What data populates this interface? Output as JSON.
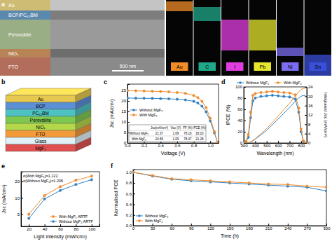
{
  "chart_data": [
    {
      "type": "line",
      "title": "c",
      "x_label": "Voltage (V)",
      "y_label": "Jsc (mA/cm²)",
      "x": [
        0,
        0.1,
        0.2,
        0.3,
        0.4,
        0.5,
        0.6,
        0.7,
        0.8,
        0.85,
        0.9,
        0.95,
        1.0,
        1.05,
        1.09
      ],
      "series": [
        {
          "name": "Without MgF₂",
          "color": "#2e7fc2",
          "marker": "circle",
          "line_style": "solid",
          "values": [
            21.37,
            21.3,
            21.25,
            21.2,
            21.1,
            21.0,
            20.8,
            20.5,
            19.8,
            19.0,
            17.5,
            14.8,
            10.5,
            4.8,
            0
          ]
        },
        {
          "name": "With MgF₂",
          "color": "#ef8a2a",
          "marker": "circle",
          "line_style": "solid",
          "values": [
            24.89,
            24.8,
            24.7,
            24.6,
            24.5,
            24.3,
            24.0,
            23.6,
            22.6,
            21.6,
            19.8,
            16.8,
            11.8,
            5.4,
            0
          ]
        }
      ],
      "xlim": [
        0,
        1.1
      ],
      "xticks": [
        {
          "value": 0,
          "label": "0.0"
        },
        0.2,
        0.4,
        0.6,
        0.8,
        {
          "value": 1,
          "label": "1.0"
        }
      ],
      "ylim": [
        0,
        28
      ],
      "yticks": [
        0,
        5,
        10,
        15,
        20,
        25
      ],
      "legend": "center left",
      "table": {
        "columns": [
          "Jsc(mA/cm²)",
          "Voc (V)",
          "FF (%)",
          "PCE (%)"
        ],
        "rows": [
          [
            "Without MgF₂",
            "21.37",
            "1.09",
            "78.16",
            "18.20"
          ],
          [
            "With MgF₂",
            "24.89",
            "1.09",
            "78.47",
            "21.28"
          ]
        ]
      }
    },
    {
      "type": "line",
      "title": "d",
      "x_label": "Wavelength (nm)",
      "y_label": "IPCE (%)",
      "y2_label": "Integrated Jsc (mA/cm²)",
      "x": [
        300,
        320,
        340,
        360,
        380,
        400,
        450,
        500,
        550,
        600,
        650,
        700,
        750,
        780,
        800,
        820,
        840
      ],
      "series": [
        {
          "name": "Without MgF₂",
          "color": "#2e7fc2",
          "marker": "circle",
          "line_style": "solid",
          "values": [
            0,
            2,
            10,
            45,
            75,
            80,
            83,
            84,
            85,
            84,
            83,
            82,
            78,
            55,
            20,
            3,
            0
          ]
        },
        {
          "name": "With MgF₂",
          "color": "#ef8a2a",
          "marker": "circle",
          "line_style": "solid",
          "values": [
            0,
            3,
            15,
            55,
            85,
            88,
            90,
            91,
            92,
            91,
            90,
            89,
            86,
            62,
            25,
            4,
            0
          ]
        },
        {
          "color": "#2e7fc2",
          "marker": "none",
          "line_style": "solid",
          "axis": "y2",
          "values": [
            0,
            0,
            0.1,
            0.4,
            1.0,
            1.6,
            3.5,
            5.4,
            7.8,
            10.2,
            12.7,
            15.2,
            17.9,
            19.3,
            20.0,
            20.3,
            20.3
          ]
        },
        {
          "color": "#ef8a2a",
          "marker": "none",
          "line_style": "solid",
          "axis": "y2",
          "values": [
            0,
            0,
            0.1,
            0.5,
            1.1,
            1.8,
            4.0,
            6.2,
            8.8,
            11.5,
            14.3,
            17.0,
            20.1,
            21.9,
            22.9,
            23.4,
            23.4
          ]
        }
      ],
      "xlim": [
        300,
        850
      ],
      "xticks": [
        300,
        400,
        500,
        600,
        700,
        800
      ],
      "ylim": [
        0,
        100
      ],
      "yticks": [
        0,
        20,
        40,
        60,
        80,
        100
      ],
      "y2lim": [
        0,
        24
      ],
      "y2ticks": [
        0,
        4,
        8,
        12,
        16,
        20,
        24
      ],
      "legend": "top"
    },
    {
      "type": "line",
      "title": "e",
      "x_label": "Light intensity (mW/cm²)",
      "y_label": "Jsc (mA/cm²)",
      "x": [
        20,
        40,
        60,
        80,
        100
      ],
      "series": [
        {
          "name": "With MgF₂ ARTF",
          "color": "#ef8a2a",
          "marker": "square",
          "line_style": "solid",
          "values": [
            5.0,
            11.0,
            16.0,
            21.0,
            24.9
          ]
        },
        {
          "name": "Without MgF₂ ARTF",
          "color": "#2e7fc2",
          "marker": "circle",
          "line_style": "solid",
          "values": [
            4.2,
            9.5,
            13.6,
            17.5,
            21.4
          ]
        }
      ],
      "xlim": [
        10,
        110
      ],
      "xticks": [
        20,
        40,
        60,
        80,
        100
      ],
      "ylim": [
        3,
        30
      ],
      "yticks": [
        5,
        10,
        20
      ],
      "log": "y",
      "legend": "lower right",
      "annotations": [
        "α(With MgF₂)=1.122",
        "α(Without MgF₂)=1.205"
      ]
    },
    {
      "type": "line",
      "title": "f",
      "x_label": "Time (h)",
      "y_label": "Normalised PCE",
      "x": [
        0,
        30,
        60,
        90,
        120,
        150,
        180,
        210,
        240,
        270,
        300
      ],
      "series": [
        {
          "name": "Without MgF₂",
          "color": "#2e7fc2",
          "marker": "circle",
          "line_style": "solid",
          "values": [
            1.0,
            0.93,
            0.87,
            0.84,
            0.82,
            0.8,
            0.78,
            0.76,
            0.74,
            0.72,
            0.65
          ]
        },
        {
          "name": "With MgF₂",
          "color": "#ef8a2a",
          "marker": "circle",
          "line_style": "solid",
          "values": [
            1.0,
            0.94,
            0.88,
            0.86,
            0.84,
            0.82,
            0.8,
            0.78,
            0.77,
            0.74,
            0.72
          ]
        }
      ],
      "xlim": [
        0,
        300
      ],
      "xticks": [
        0,
        30,
        60,
        90,
        120,
        150,
        180,
        210,
        240,
        270,
        300
      ],
      "ylim": [
        0,
        1.05
      ],
      "yticks": [
        {
          "value": 0,
          "label": "0.0"
        },
        0.2,
        0.4,
        0.6,
        0.8,
        {
          "value": 1,
          "label": "1.0"
        }
      ],
      "legend": "lower left"
    }
  ],
  "sem": {
    "title": "a",
    "scale_bar": "500 nm",
    "layers": [
      {
        "label": "Au",
        "color": "#d4b84a"
      },
      {
        "label": "BCP/PC₆₁BM",
        "color": "#4a90c8"
      },
      {
        "label": "Perovskite",
        "color": "#9ab87a"
      },
      {
        "label": "NiOₓ",
        "color": "#e0904a"
      },
      {
        "label": "FTO",
        "color": "#c86040"
      }
    ]
  },
  "eds": [
    {
      "label": "Au",
      "color": "#f28c28"
    },
    {
      "label": "C",
      "color": "#1fa88a"
    },
    {
      "label": "I",
      "color": "#e23de0"
    },
    {
      "label": "Pb",
      "color": "#e6e62e"
    },
    {
      "label": "Ni",
      "color": "#7b6cf0"
    },
    {
      "label": "Sn",
      "color": "#3a4fd8"
    }
  ],
  "stack": {
    "title": "b",
    "layers": [
      {
        "label": "Au",
        "color": "#e6c84f"
      },
      {
        "label": "BCP",
        "color": "#5b8fd6"
      },
      {
        "label": "PC₆₁BM",
        "color": "#4cc2c2"
      },
      {
        "label": "Perovskite",
        "color": "#7ec850"
      },
      {
        "label": "NiOₓ",
        "color": "#b5d84a"
      },
      {
        "label": "FTO",
        "color": "#f39a3a"
      },
      {
        "label": "Glass",
        "color": "#dff0f7"
      },
      {
        "label": "MgF₂",
        "color": "#e05050"
      }
    ]
  }
}
